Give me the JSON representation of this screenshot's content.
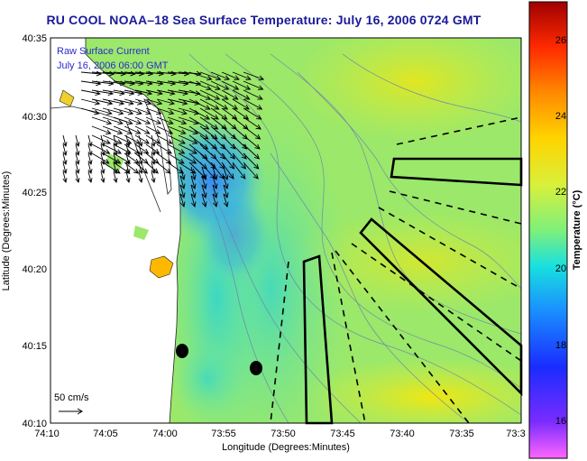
{
  "header": {
    "title": "RU COOL  NOAA–18  Sea Surface Temperature:  July 16, 2006 0724 GMT"
  },
  "overlay_legend": {
    "current_label": "Raw Surface Current",
    "current_time": "July 16, 2006 06:00 GMT",
    "scale_label": "50 cm/s"
  },
  "axes": {
    "xlabel": "Longitude (Degrees:Minutes)",
    "ylabel": "Latitude (Degrees:Minutes)",
    "x_ticks": [
      "74:10",
      "74:05",
      "74:00",
      "73:55",
      "73:50",
      "73:45",
      "73:40",
      "73:35",
      "73:3"
    ],
    "y_ticks": [
      "40:35",
      "40:30",
      "40:25",
      "40:20",
      "40:15",
      "40:10"
    ]
  },
  "colorbar": {
    "label": "Temperature (°C)",
    "ticks": [
      "26",
      "24",
      "22",
      "20",
      "18",
      "16"
    ],
    "range": [
      15,
      27
    ]
  },
  "colors": {
    "title": "#1a1a9a",
    "legend_text": "#2a2ad0",
    "land": "#ffffff",
    "water_base": "#9be86a"
  },
  "markers": [
    {
      "name": "buoy-marker-1",
      "lon": "73:58.8",
      "lat": "40:14.6"
    },
    {
      "name": "buoy-marker-2",
      "lon": "73:52.4",
      "lat": "40:13.5"
    }
  ]
}
